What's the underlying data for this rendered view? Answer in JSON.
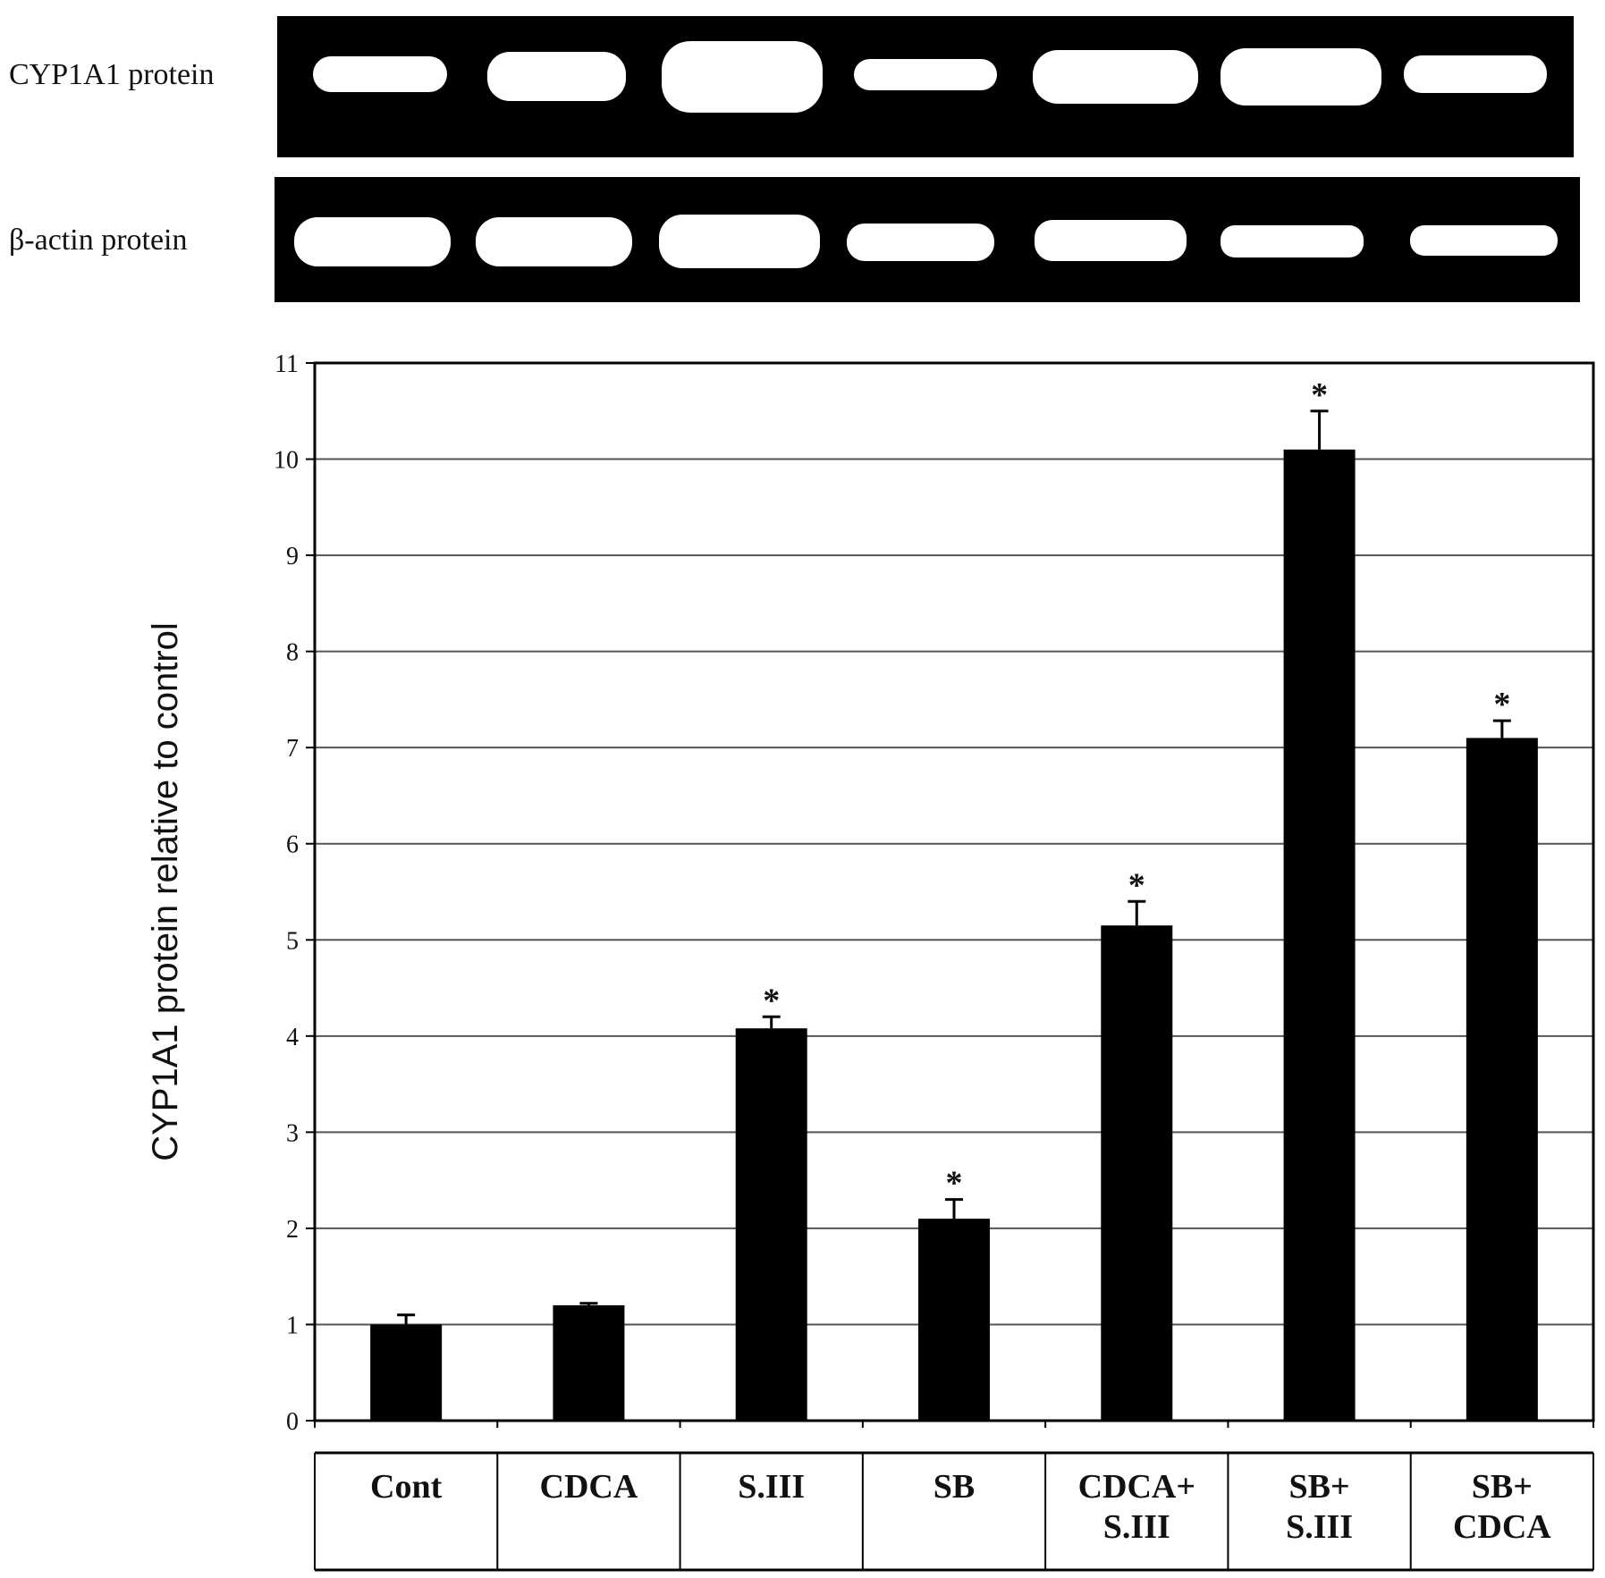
{
  "blots": {
    "top_label": "CYP1A1 protein",
    "bottom_label": "β-actin protein"
  },
  "chart_data": {
    "type": "bar",
    "categories": [
      [
        "Cont"
      ],
      [
        "CDCA"
      ],
      [
        "S.III"
      ],
      [
        "SB"
      ],
      [
        "CDCA+",
        "S.III"
      ],
      [
        "SB+",
        "S.III"
      ],
      [
        "SB+",
        "CDCA"
      ]
    ],
    "values": [
      1.0,
      1.2,
      4.08,
      2.1,
      5.15,
      10.1,
      7.1
    ],
    "errors": [
      0.1,
      0.02,
      0.12,
      0.2,
      0.25,
      0.4,
      0.18
    ],
    "significant": [
      false,
      false,
      true,
      true,
      true,
      true,
      true
    ],
    "significance_marker": "*",
    "ylabel": "CYP1A1 protein relative to control",
    "xlabel": "",
    "ylim": [
      0,
      11
    ],
    "yticks": [
      0,
      1,
      2,
      3,
      4,
      5,
      6,
      7,
      8,
      9,
      10,
      11
    ],
    "grid": true,
    "bar_color": "#000000"
  }
}
